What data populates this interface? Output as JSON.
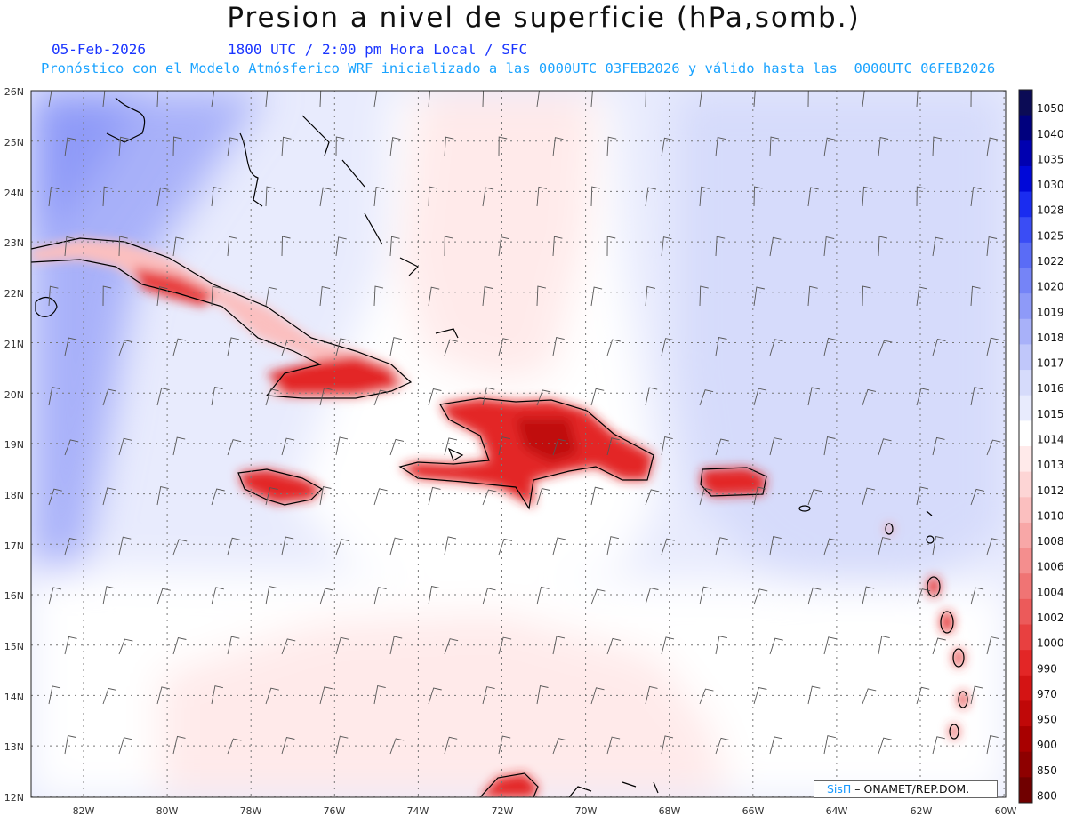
{
  "header": {
    "title": "Presion a nivel de superficie (hPa,somb.)",
    "date": "05-Feb-2026",
    "time": "1800 UTC / 2:00 pm Hora Local / SFC",
    "description": "Pronóstico con el Modelo Atmósferico WRF inicializado a las 0000UTC_03FEB2026 y válido hasta las  0000UTC_06FEB2026"
  },
  "map": {
    "lon_labels": [
      "82W",
      "80W",
      "78W",
      "76W",
      "74W",
      "72W",
      "70W",
      "68W",
      "66W",
      "64W",
      "62W",
      "60W"
    ],
    "lat_labels": [
      "26N",
      "25N",
      "24N",
      "23N",
      "22N",
      "21N",
      "20N",
      "19N",
      "18N",
      "17N",
      "16N",
      "15N",
      "14N",
      "13N",
      "12N"
    ],
    "colorbar": {
      "levels": [
        "1050",
        "1040",
        "1035",
        "1030",
        "1028",
        "1025",
        "1022",
        "1020",
        "1019",
        "1018",
        "1017",
        "1016",
        "1015",
        "1014",
        "1013",
        "1012",
        "1010",
        "1008",
        "1006",
        "1004",
        "1002",
        "1000",
        "990",
        "970",
        "950",
        "900",
        "850",
        "800"
      ],
      "colors": [
        "#0b0b55",
        "#00007e",
        "#0000b0",
        "#0008d8",
        "#1a2cf0",
        "#3a4df5",
        "#5a6cf6",
        "#7584f7",
        "#8e9af8",
        "#a8b1f9",
        "#c0c7fa",
        "#d6dbfb",
        "#e8ebfd",
        "#ffffff",
        "#ffeaea",
        "#fdd5d5",
        "#fbbfbf",
        "#f8a7a7",
        "#f48e8e",
        "#f07474",
        "#ec5a5a",
        "#e84040",
        "#e32626",
        "#d41414",
        "#c00808",
        "#a80000",
        "#8e0000",
        "#700000"
      ]
    },
    "colors": {
      "ocean_high": "#a8b1f9",
      "ocean_mid": "#e8ebfd",
      "ocean_low": "#ffeaea",
      "land_low": "#e32626",
      "coast": "#000000"
    }
  },
  "credit": {
    "logo": "SisΠ",
    "text": " – ONAMET/REP.DOM."
  }
}
